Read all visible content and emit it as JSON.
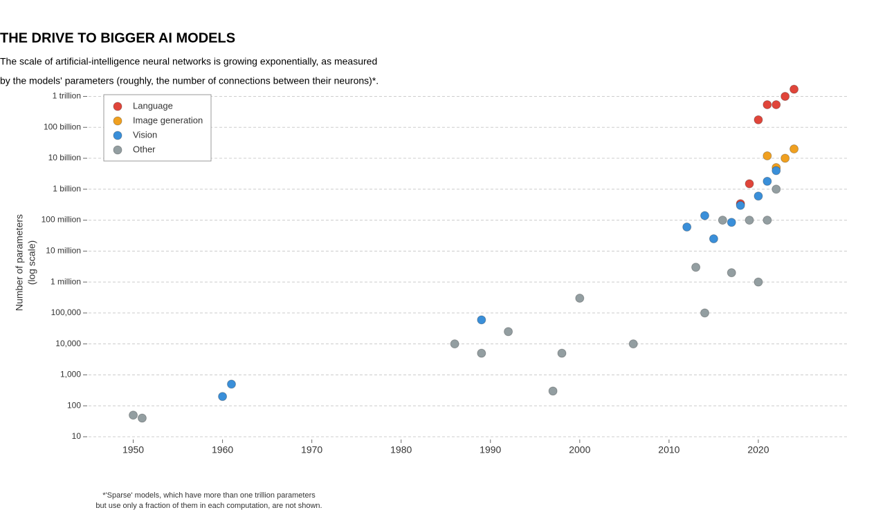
{
  "chart_data": {
    "type": "scatter",
    "title": "THE DRIVE TO BIGGER AI MODELS",
    "subtitle": [
      "The scale of artificial-intelligence neural networks is growing exponentially, as measured",
      "by the models' parameters (roughly, the number of connections between their neurons)*."
    ],
    "y_label": [
      "Number of parameters",
      "(log scale)"
    ],
    "footnote": [
      "*'Sparse' models, which have more than one trillion parameters",
      "but use only a fraction of them in each computation, are not shown."
    ],
    "log_y": true,
    "grid": true,
    "legend": "top-left",
    "xlim": [
      1945,
      2030
    ],
    "xticks": [
      1950,
      1960,
      1970,
      1980,
      1990,
      2000,
      2010,
      2020
    ],
    "ylim": [
      10,
      2000000000000
    ],
    "yticks": [
      {
        "value": 1000000000000,
        "label": "1 trillion"
      },
      {
        "value": 100000000000,
        "label": "100 billion"
      },
      {
        "value": 10000000000,
        "label": "10 billion"
      },
      {
        "value": 1000000000,
        "label": "1 billion"
      },
      {
        "value": 100000000,
        "label": "100 million"
      },
      {
        "value": 10000000,
        "label": "10 million"
      },
      {
        "value": 1000000,
        "label": "1 million"
      },
      {
        "value": 100000,
        "label": "100,000"
      },
      {
        "value": 10000,
        "label": "10,000"
      },
      {
        "value": 1000,
        "label": "1,000"
      },
      100,
      10
    ],
    "series": [
      {
        "name": "Language",
        "color": "#e0453a",
        "x": [
          2018,
          2019,
          2020,
          2021,
          2022,
          2023,
          2024
        ],
        "values": [
          340000000,
          1500000000,
          175000000000,
          540000000000,
          540000000000,
          1000000000000,
          1700000000000
        ]
      },
      {
        "name": "Image generation",
        "color": "#f0a020",
        "x": [
          2021,
          2022,
          2023,
          2024
        ],
        "values": [
          12000000000,
          5000000000,
          10000000000,
          20000000000
        ]
      },
      {
        "name": "Vision",
        "color": "#3a8fd9",
        "x": [
          1960,
          1961,
          1989,
          2012,
          2014,
          2015,
          2017,
          2018,
          2020,
          2021,
          2022
        ],
        "values": [
          200,
          500,
          60000,
          60000000,
          140000000,
          25000000,
          85000000,
          300000000,
          600000000,
          1800000000,
          4000000000
        ]
      },
      {
        "name": "Other",
        "color": "#939ea1",
        "x": [
          1950,
          1951,
          1986,
          1989,
          1992,
          1997,
          1998,
          2000,
          2006,
          2013,
          2014,
          2016,
          2017,
          2019,
          2020,
          2021,
          2022
        ],
        "values": [
          50,
          40,
          10000,
          5000,
          25000,
          300,
          5000,
          300000,
          10000,
          3000000,
          100000,
          100000000,
          2000000,
          100000000,
          1000000,
          100000000,
          1000000000
        ]
      }
    ]
  }
}
